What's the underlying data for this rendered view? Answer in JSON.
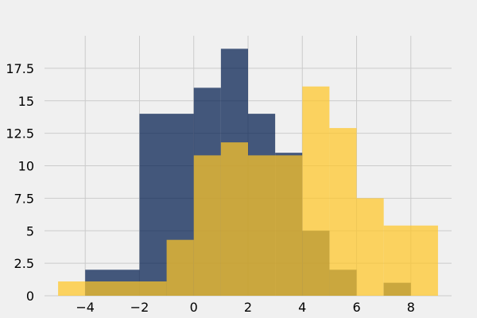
{
  "chart_data": {
    "type": "bar",
    "title": "",
    "xlabel": "",
    "ylabel": "",
    "xlim": [
      -5.5,
      9.5
    ],
    "ylim": [
      0,
      20
    ],
    "grid": true,
    "x_ticks": [
      {
        "value": -4,
        "label": "−4"
      },
      {
        "value": -2,
        "label": "−2"
      },
      {
        "value": 0,
        "label": "0"
      },
      {
        "value": 2,
        "label": "2"
      },
      {
        "value": 4,
        "label": "4"
      },
      {
        "value": 6,
        "label": "6"
      },
      {
        "value": 8,
        "label": "8"
      }
    ],
    "y_ticks": [
      {
        "value": 0,
        "label": "0"
      },
      {
        "value": 2.5,
        "label": "2.5"
      },
      {
        "value": 5,
        "label": "5"
      },
      {
        "value": 7.5,
        "label": "7.5"
      },
      {
        "value": 10,
        "label": "10"
      },
      {
        "value": 12.5,
        "label": "12.5"
      },
      {
        "value": 15,
        "label": "15"
      },
      {
        "value": 17.5,
        "label": "17.5"
      }
    ],
    "series": [
      {
        "color": "#001c4d",
        "opacity": 0.72,
        "bins": [
          {
            "x0": -4,
            "x1": -2,
            "value": 2
          },
          {
            "x0": -2,
            "x1": 0,
            "value": 14
          },
          {
            "x0": 0,
            "x1": 1,
            "value": 16
          },
          {
            "x0": 1,
            "x1": 2,
            "value": 19
          },
          {
            "x0": 2,
            "x1": 3,
            "value": 14
          },
          {
            "x0": 3,
            "x1": 4,
            "value": 11
          },
          {
            "x0": 4,
            "x1": 5,
            "value": 5
          },
          {
            "x0": 5,
            "x1": 6,
            "value": 2
          },
          {
            "x0": 7,
            "x1": 8,
            "value": 1
          }
        ]
      },
      {
        "color": "#ffc627",
        "opacity": 0.72,
        "bins": [
          {
            "x0": -5,
            "x1": -4,
            "value": 1.1
          },
          {
            "x0": -4,
            "x1": -1,
            "value": 1.1
          },
          {
            "x0": -1,
            "x1": 0,
            "value": 4.3
          },
          {
            "x0": 0,
            "x1": 1,
            "value": 10.8
          },
          {
            "x0": 1,
            "x1": 2,
            "value": 11.8
          },
          {
            "x0": 2,
            "x1": 4,
            "value": 10.8
          },
          {
            "x0": 4,
            "x1": 5,
            "value": 16.1
          },
          {
            "x0": 5,
            "x1": 6,
            "value": 12.9
          },
          {
            "x0": 6,
            "x1": 7,
            "value": 7.5
          },
          {
            "x0": 7,
            "x1": 9,
            "value": 5.4
          }
        ]
      }
    ]
  }
}
